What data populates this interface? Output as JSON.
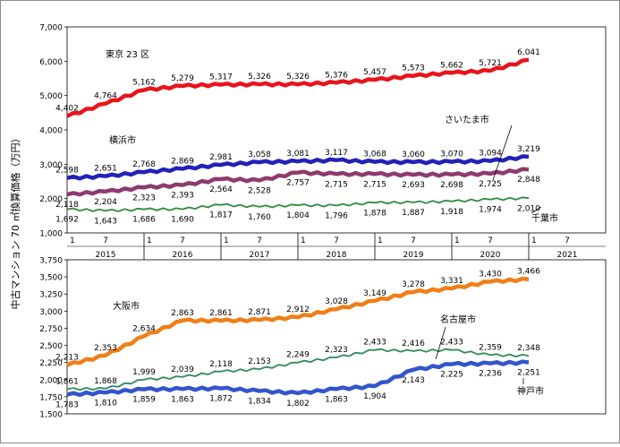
{
  "ylabel": "中古マンション 70 ㎡換算価格（万円）",
  "x_axis": {
    "month_ticks": [
      "1",
      "7"
    ],
    "years": [
      "2015",
      "2016",
      "2017",
      "2018",
      "2019",
      "2020",
      "2021"
    ]
  },
  "chart_data": [
    {
      "type": "line",
      "ylim": [
        1000,
        7000
      ],
      "yticks": [
        "1,000",
        "2,000",
        "3,000",
        "4,000",
        "5,000",
        "6,000",
        "7,000"
      ],
      "xlim": [
        "2015-01",
        "2021-12"
      ],
      "series": [
        {
          "name": "東京 23 区",
          "color": "#e8141b",
          "points": [
            {
              "x": "2015-01",
              "y": 4402
            },
            {
              "x": "2015-07",
              "y": 4764
            },
            {
              "x": "2016-01",
              "y": 5162
            },
            {
              "x": "2016-07",
              "y": 5279
            },
            {
              "x": "2017-01",
              "y": 5317
            },
            {
              "x": "2017-07",
              "y": 5326
            },
            {
              "x": "2018-01",
              "y": 5326
            },
            {
              "x": "2018-07",
              "y": 5376
            },
            {
              "x": "2019-01",
              "y": 5457
            },
            {
              "x": "2019-07",
              "y": 5573
            },
            {
              "x": "2020-01",
              "y": 5662
            },
            {
              "x": "2020-07",
              "y": 5721
            },
            {
              "x": "2021-01",
              "y": 6041
            }
          ],
          "labels": [
            "4,402",
            "4,764",
            "5,162",
            "5,279",
            "5,317",
            "5,326",
            "5,326",
            "5,376",
            "5,457",
            "5,573",
            "5,662",
            "5,721",
            "6,041"
          ]
        },
        {
          "name": "横浜市",
          "color": "#2222b8",
          "points": [
            {
              "x": "2015-01",
              "y": 2598
            },
            {
              "x": "2015-07",
              "y": 2651
            },
            {
              "x": "2016-01",
              "y": 2768
            },
            {
              "x": "2016-07",
              "y": 2869
            },
            {
              "x": "2017-01",
              "y": 2981
            },
            {
              "x": "2017-07",
              "y": 3058
            },
            {
              "x": "2018-01",
              "y": 3081
            },
            {
              "x": "2018-07",
              "y": 3117
            },
            {
              "x": "2019-01",
              "y": 3068
            },
            {
              "x": "2019-07",
              "y": 3060
            },
            {
              "x": "2020-01",
              "y": 3070
            },
            {
              "x": "2020-07",
              "y": 3094
            },
            {
              "x": "2021-01",
              "y": 3219
            }
          ],
          "labels": [
            "2,598",
            "2,651",
            "2,768",
            "2,869",
            "2,981",
            "3,058",
            "3,081",
            "3,117",
            "3,068",
            "3,060",
            "3,070",
            "3,094",
            "3,219"
          ]
        },
        {
          "name": "さいたま市",
          "color": "#8e3a6e",
          "points": [
            {
              "x": "2015-01",
              "y": 2118
            },
            {
              "x": "2015-07",
              "y": 2204
            },
            {
              "x": "2016-01",
              "y": 2323
            },
            {
              "x": "2016-07",
              "y": 2393
            },
            {
              "x": "2017-01",
              "y": 2564
            },
            {
              "x": "2017-07",
              "y": 2528
            },
            {
              "x": "2018-01",
              "y": 2757
            },
            {
              "x": "2018-07",
              "y": 2715
            },
            {
              "x": "2019-01",
              "y": 2715
            },
            {
              "x": "2019-07",
              "y": 2693
            },
            {
              "x": "2020-01",
              "y": 2698
            },
            {
              "x": "2020-07",
              "y": 2725
            },
            {
              "x": "2021-01",
              "y": 2848
            }
          ],
          "labels": [
            "2,118",
            "2,204",
            "2,323",
            "2,393",
            "2,564",
            "2,528",
            "2,757",
            "2,715",
            "2,715",
            "2,693",
            "2,698",
            "2,725",
            "2,848"
          ]
        },
        {
          "name": "千葉市",
          "color": "#2e8b3e",
          "points": [
            {
              "x": "2015-01",
              "y": 1692
            },
            {
              "x": "2015-07",
              "y": 1643
            },
            {
              "x": "2016-01",
              "y": 1686
            },
            {
              "x": "2016-07",
              "y": 1690
            },
            {
              "x": "2017-01",
              "y": 1817
            },
            {
              "x": "2017-07",
              "y": 1760
            },
            {
              "x": "2018-01",
              "y": 1804
            },
            {
              "x": "2018-07",
              "y": 1796
            },
            {
              "x": "2019-01",
              "y": 1878
            },
            {
              "x": "2019-07",
              "y": 1887
            },
            {
              "x": "2020-01",
              "y": 1918
            },
            {
              "x": "2020-07",
              "y": 1974
            },
            {
              "x": "2021-01",
              "y": 2010
            }
          ],
          "labels": [
            "1,692",
            "1,643",
            "1,686",
            "1,690",
            "1,817",
            "1,760",
            "1,804",
            "1,796",
            "1,878",
            "1,887",
            "1,918",
            "1,974",
            "2,010"
          ]
        }
      ]
    },
    {
      "type": "line",
      "ylim": [
        1500,
        3750
      ],
      "yticks": [
        "1,500",
        "1,750",
        "2,000",
        "2,250",
        "2,500",
        "2,750",
        "3,000",
        "3,250",
        "3,500",
        "3,750"
      ],
      "xlim": [
        "2015-01",
        "2021-12"
      ],
      "series": [
        {
          "name": "大阪市",
          "color": "#f07e18",
          "points": [
            {
              "x": "2015-01",
              "y": 2213
            },
            {
              "x": "2015-07",
              "y": 2353
            },
            {
              "x": "2016-01",
              "y": 2634
            },
            {
              "x": "2016-07",
              "y": 2863
            },
            {
              "x": "2017-01",
              "y": 2861
            },
            {
              "x": "2017-07",
              "y": 2871
            },
            {
              "x": "2018-01",
              "y": 2912
            },
            {
              "x": "2018-07",
              "y": 3028
            },
            {
              "x": "2019-01",
              "y": 3149
            },
            {
              "x": "2019-07",
              "y": 3278
            },
            {
              "x": "2020-01",
              "y": 3331
            },
            {
              "x": "2020-07",
              "y": 3430
            },
            {
              "x": "2021-01",
              "y": 3466
            }
          ],
          "labels": [
            "2,213",
            "2,353",
            "2,634",
            "2,863",
            "2,861",
            "2,871",
            "2,912",
            "3,028",
            "3,149",
            "3,278",
            "3,331",
            "3,430",
            "3,466"
          ]
        },
        {
          "name": "名古屋市",
          "color": "#2e8b57",
          "points": [
            {
              "x": "2015-01",
              "y": 1861
            },
            {
              "x": "2015-07",
              "y": 1868
            },
            {
              "x": "2016-01",
              "y": 1999
            },
            {
              "x": "2016-07",
              "y": 2039
            },
            {
              "x": "2017-01",
              "y": 2118
            },
            {
              "x": "2017-07",
              "y": 2153
            },
            {
              "x": "2018-01",
              "y": 2249
            },
            {
              "x": "2018-07",
              "y": 2323
            },
            {
              "x": "2019-01",
              "y": 2433
            },
            {
              "x": "2019-07",
              "y": 2416
            },
            {
              "x": "2020-01",
              "y": 2433
            },
            {
              "x": "2020-07",
              "y": 2359
            },
            {
              "x": "2021-01",
              "y": 2348
            }
          ],
          "labels": [
            "1,861",
            "1,868",
            "1,999",
            "2,039",
            "2,118",
            "2,153",
            "2,249",
            "2,323",
            "2,433",
            "2,416",
            "2,433",
            "2,359",
            "2,348"
          ]
        },
        {
          "name": "神戸市",
          "color": "#3355cc",
          "points": [
            {
              "x": "2015-01",
              "y": 1783
            },
            {
              "x": "2015-07",
              "y": 1810
            },
            {
              "x": "2016-01",
              "y": 1859
            },
            {
              "x": "2016-07",
              "y": 1863
            },
            {
              "x": "2017-01",
              "y": 1872
            },
            {
              "x": "2017-07",
              "y": 1834
            },
            {
              "x": "2018-01",
              "y": 1802
            },
            {
              "x": "2018-07",
              "y": 1863
            },
            {
              "x": "2019-01",
              "y": 1904
            },
            {
              "x": "2019-07",
              "y": 2143
            },
            {
              "x": "2020-01",
              "y": 2225
            },
            {
              "x": "2020-07",
              "y": 2236
            },
            {
              "x": "2021-01",
              "y": 2251
            }
          ],
          "labels": [
            "1,783",
            "1,810",
            "1,859",
            "1,863",
            "1,872",
            "1,834",
            "1,802",
            "1,863",
            "1,904",
            "2,143",
            "2,225",
            "2,236",
            "2,251"
          ]
        }
      ]
    }
  ]
}
